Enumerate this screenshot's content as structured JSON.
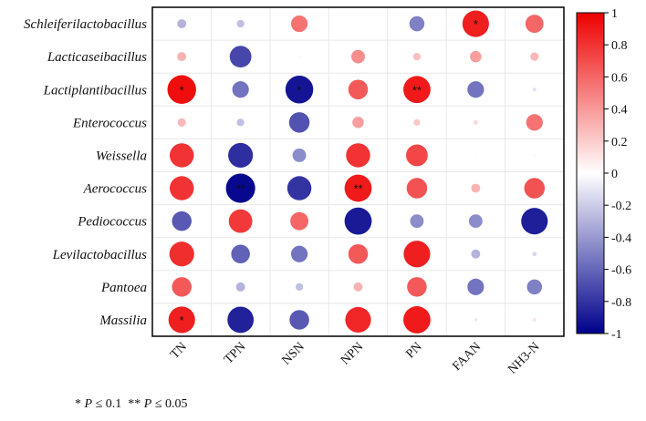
{
  "chart_data": {
    "type": "heatmap",
    "rows": [
      "Schleiferilactobacillus",
      "Lacticaseibacillus",
      "Lactiplantibacillus",
      "Enterococcus",
      "Weissella",
      "Aerococcus",
      "Pediococcus",
      "Levilactobacillus",
      "Pantoea",
      "Massilia"
    ],
    "columns": [
      "TN",
      "TPN",
      "NSN",
      "NPN",
      "PN",
      "FAAN",
      "NH3-N"
    ],
    "values": [
      [
        -0.3,
        -0.25,
        0.55,
        0.02,
        -0.5,
        0.88,
        0.6
      ],
      [
        0.3,
        -0.72,
        0.05,
        0.45,
        0.25,
        0.38,
        0.28
      ],
      [
        0.95,
        -0.55,
        -0.92,
        0.65,
        0.9,
        -0.55,
        -0.12
      ],
      [
        0.28,
        -0.25,
        -0.68,
        0.38,
        0.22,
        0.15,
        0.55
      ],
      [
        0.8,
        -0.82,
        -0.45,
        0.8,
        0.72,
        0.03,
        0.07
      ],
      [
        0.8,
        -0.97,
        -0.8,
        0.9,
        0.68,
        0.3,
        0.68
      ],
      [
        -0.65,
        0.78,
        0.6,
        -0.9,
        -0.45,
        -0.45,
        -0.88
      ],
      [
        0.82,
        -0.62,
        -0.55,
        0.65,
        0.88,
        -0.3,
        -0.15
      ],
      [
        0.65,
        -0.3,
        -0.25,
        0.3,
        0.65,
        -0.55,
        -0.5
      ],
      [
        0.88,
        -0.87,
        -0.65,
        0.85,
        0.9,
        -0.1,
        0.12
      ]
    ],
    "significance": [
      [
        "",
        "",
        "",
        "",
        "",
        "*",
        ""
      ],
      [
        "",
        "",
        "",
        "",
        "",
        "",
        ""
      ],
      [
        "*",
        "",
        "*",
        "",
        "**",
        "",
        ""
      ],
      [
        "",
        "",
        "",
        "",
        "",
        "",
        ""
      ],
      [
        "",
        "",
        "",
        "",
        "",
        "",
        ""
      ],
      [
        "",
        "**",
        "",
        "**",
        "",
        "",
        ""
      ],
      [
        "",
        "",
        "",
        "",
        "",
        "",
        ""
      ],
      [
        "",
        "",
        "",
        "",
        "",
        "",
        ""
      ],
      [
        "",
        "",
        "",
        "",
        "",
        "",
        ""
      ],
      [
        "*",
        "",
        "",
        "",
        "",
        "",
        ""
      ]
    ],
    "colorbar": {
      "range": [
        -1,
        1
      ],
      "ticks": [
        "1",
        "0.8",
        "0.6",
        "0.4",
        "0.2",
        "0",
        "-0.2",
        "-0.4",
        "-0.6",
        "-0.8",
        "-1"
      ],
      "colors": {
        "negative": "#00008b",
        "zero": "#ffffff",
        "positive": "#ee0000"
      }
    }
  },
  "footnote": {
    "star1": "*",
    "p1": "P",
    "cond1": " ≤ 0.1  ",
    "star2": "**",
    "p2": "P",
    "cond2": " ≤ 0.05"
  }
}
